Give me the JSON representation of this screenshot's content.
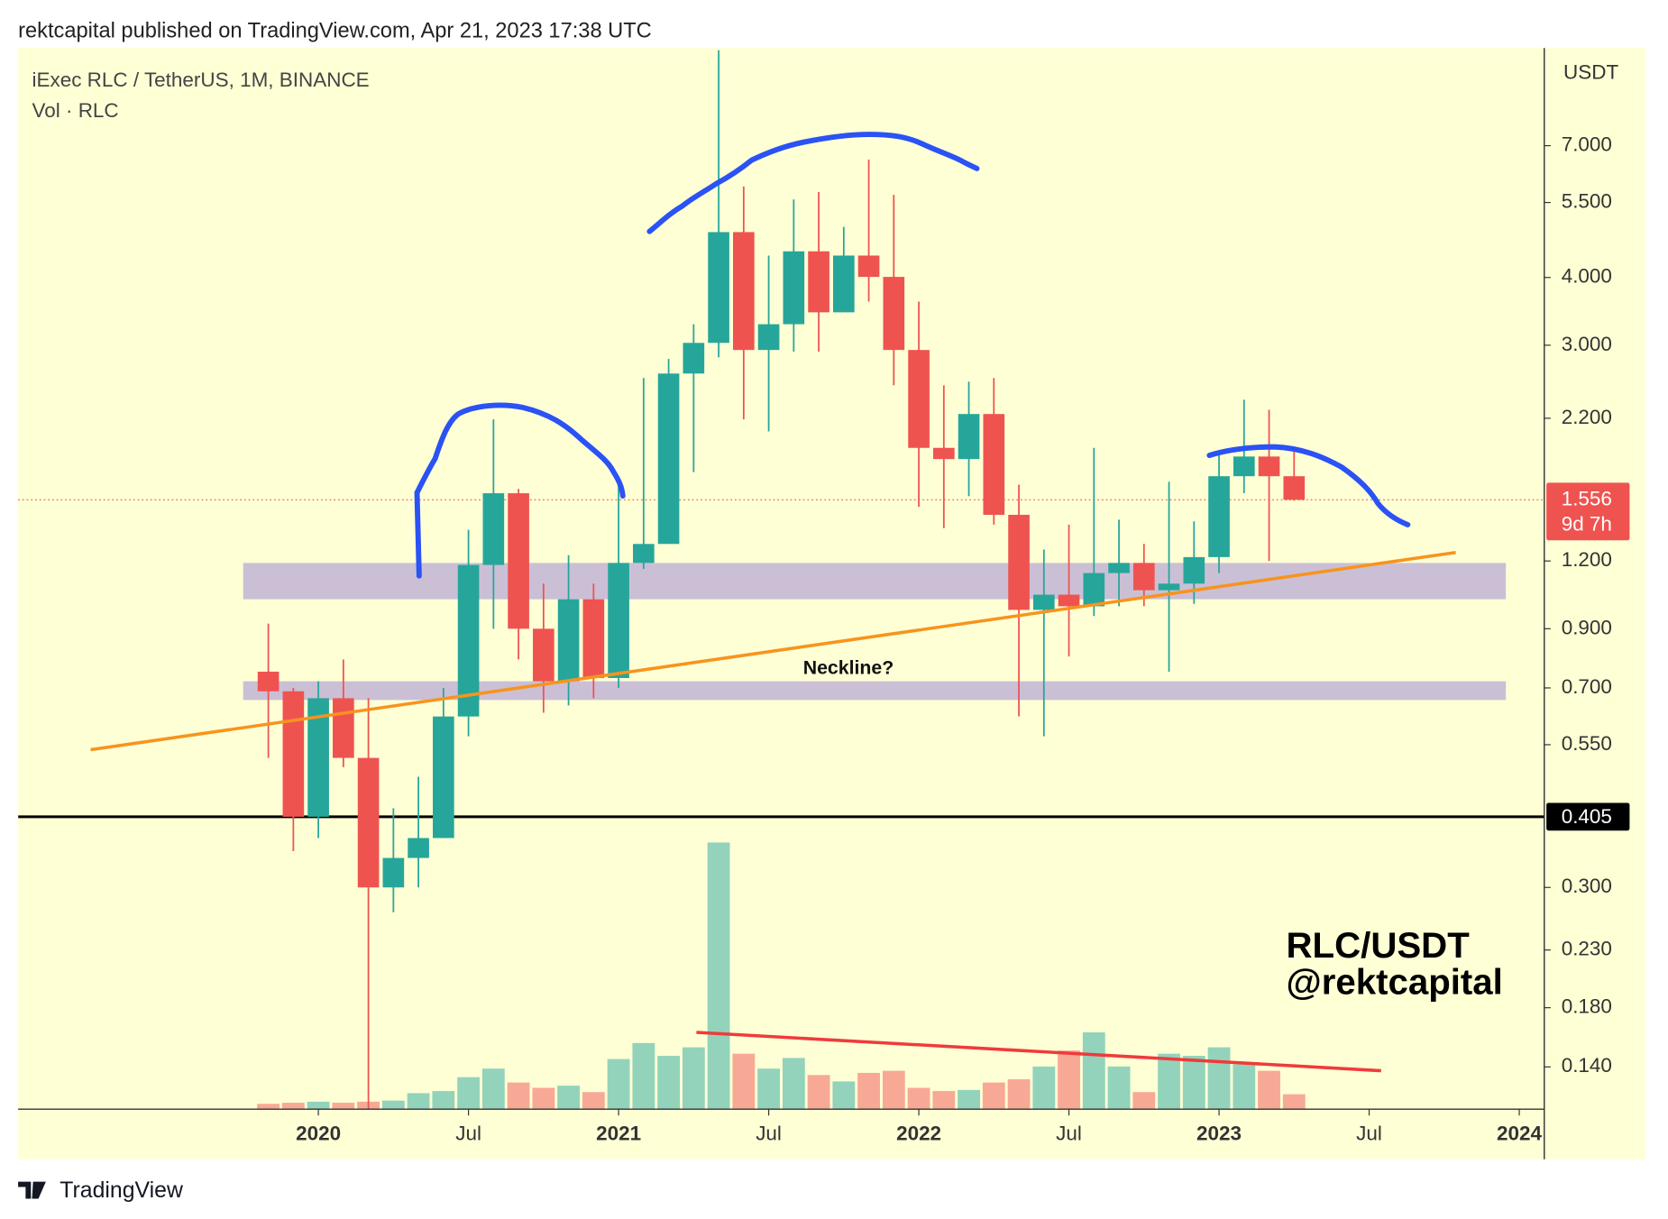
{
  "header": "rektcapital published on TradingView.com, Apr 21, 2023 17:38 UTC",
  "footer": "TradingView",
  "chart_data": {
    "type": "candlestick",
    "title": "iExec RLC / TetherUS, 1M, BINANCE",
    "subtitle": "Vol · RLC",
    "y_label": "USDT",
    "log_y": true,
    "x": [
      "2019-11",
      "2019-12",
      "2020-01",
      "2020-02",
      "2020-03",
      "2020-04",
      "2020-05",
      "2020-06",
      "2020-07",
      "2020-08",
      "2020-09",
      "2020-10",
      "2020-11",
      "2020-12",
      "2021-01",
      "2021-02",
      "2021-03",
      "2021-04",
      "2021-05",
      "2021-06",
      "2021-07",
      "2021-08",
      "2021-09",
      "2021-10",
      "2021-11",
      "2021-12",
      "2022-01",
      "2022-02",
      "2022-03",
      "2022-04",
      "2022-05",
      "2022-06",
      "2022-07",
      "2022-08",
      "2022-09",
      "2022-10",
      "2022-11",
      "2022-12",
      "2023-01",
      "2023-02",
      "2023-03",
      "2023-04"
    ],
    "open": [
      0.75,
      0.69,
      0.405,
      0.67,
      0.52,
      0.3,
      0.34,
      0.37,
      0.62,
      1.18,
      1.6,
      0.9,
      0.72,
      1.02,
      0.73,
      1.19,
      1.29,
      2.66,
      3.03,
      4.85,
      2.94,
      3.28,
      4.47,
      3.45,
      4.39,
      4.01,
      2.94,
      1.94,
      1.85,
      2.24,
      1.46,
      0.975,
      1.04,
      0.99,
      1.14,
      1.19,
      1.06,
      1.09,
      1.22,
      1.72,
      1.87,
      1.72
    ],
    "high": [
      0.92,
      0.7,
      0.72,
      0.79,
      0.67,
      0.42,
      0.48,
      0.7,
      1.37,
      2.19,
      1.63,
      1.09,
      1.23,
      1.09,
      1.68,
      2.61,
      2.83,
      3.28,
      10.5,
      5.89,
      4.39,
      5.57,
      5.75,
      4.96,
      6.6,
      5.68,
      3.61,
      2.53,
      2.57,
      2.61,
      1.66,
      1.26,
      1.4,
      1.94,
      1.43,
      1.29,
      1.68,
      1.42,
      1.92,
      2.38,
      2.28,
      1.92
    ],
    "low": [
      0.52,
      0.35,
      0.37,
      0.5,
      0.117,
      0.27,
      0.3,
      0.37,
      0.57,
      0.9,
      0.79,
      0.63,
      0.65,
      0.67,
      0.7,
      1.16,
      1.29,
      1.75,
      2.85,
      2.19,
      2.08,
      2.92,
      2.92,
      3.45,
      3.61,
      2.53,
      1.51,
      1.38,
      1.58,
      1.4,
      0.62,
      0.57,
      0.8,
      0.95,
      0.99,
      0.99,
      0.75,
      1.0,
      1.14,
      1.6,
      1.2,
      1.55
    ],
    "close": [
      0.69,
      0.405,
      0.67,
      0.52,
      0.3,
      0.34,
      0.37,
      0.62,
      1.18,
      1.6,
      0.9,
      0.72,
      1.02,
      0.73,
      1.19,
      1.29,
      2.66,
      3.03,
      4.85,
      2.94,
      3.28,
      4.47,
      3.45,
      4.39,
      4.01,
      2.94,
      1.94,
      1.85,
      2.24,
      1.46,
      0.975,
      1.04,
      0.99,
      1.14,
      1.19,
      1.06,
      1.09,
      1.22,
      1.72,
      1.87,
      1.72,
      1.556
    ],
    "volume": [
      5,
      6,
      7,
      6,
      7,
      8,
      15,
      17,
      30,
      38,
      25,
      20,
      22,
      16,
      47,
      62,
      50,
      58,
      250,
      52,
      38,
      48,
      32,
      26,
      34,
      36,
      20,
      17,
      18,
      25,
      28,
      40,
      55,
      72,
      40,
      16,
      52,
      50,
      58,
      42,
      36,
      14
    ],
    "up_color": "#26a69a",
    "down_color": "#ef5350",
    "volume_up_color": "#93d3bb",
    "volume_down_color": "#f8a996",
    "ylim": [
      0.117,
      10.6
    ],
    "yticks": [
      {
        "value": 7,
        "label": "7.000"
      },
      {
        "value": 5.5,
        "label": "5.500"
      },
      {
        "value": 4,
        "label": "4.000"
      },
      {
        "value": 3,
        "label": "3.000"
      },
      {
        "value": 2.2,
        "label": "2.200"
      },
      {
        "value": 1.2,
        "label": "1.200"
      },
      {
        "value": 0.9,
        "label": "0.900"
      },
      {
        "value": 0.7,
        "label": "0.700"
      },
      {
        "value": 0.55,
        "label": "0.550"
      },
      {
        "value": 0.3,
        "label": "0.300"
      },
      {
        "value": 0.23,
        "label": "0.230"
      },
      {
        "value": 0.18,
        "label": "0.180"
      },
      {
        "value": 0.14,
        "label": "0.140"
      }
    ],
    "xlim": [
      "2019-01",
      "2024-02"
    ],
    "xticks": [
      {
        "value": "2020-01",
        "label": "2020"
      },
      {
        "value": "2020-07",
        "label": "Jul"
      },
      {
        "value": "2021-01",
        "label": "2021"
      },
      {
        "value": "2021-07",
        "label": "Jul"
      },
      {
        "value": "2022-01",
        "label": "2022"
      },
      {
        "value": "2022-07",
        "label": "Jul"
      },
      {
        "value": "2023-01",
        "label": "2023"
      },
      {
        "value": "2023-07",
        "label": "Jul"
      },
      {
        "value": "2024-01",
        "label": "2024"
      }
    ],
    "hline": 0.405,
    "countdown": "9d 7h",
    "zones": [
      {
        "from": 1.02,
        "to": 1.19
      },
      {
        "from": 0.665,
        "to": 0.72
      }
    ],
    "annotations": [
      "Neckline?",
      "RLC/USDT",
      "@rektcapital"
    ]
  }
}
